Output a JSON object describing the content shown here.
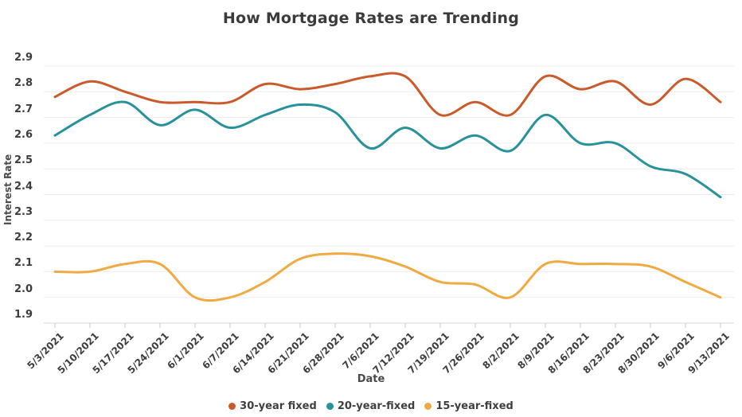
{
  "chart_data": {
    "type": "line",
    "title": "How Mortgage Rates are Trending",
    "xlabel": "Date",
    "ylabel": "Interest Rate",
    "ylim": [
      1.9,
      2.9
    ],
    "grid": true,
    "legend_position": "bottom",
    "background": "#ffffff",
    "gridline_color": "#ececec",
    "axisline_color": "#d6d6d6",
    "y_ticks": [
      "2.9",
      "2.8",
      "2.7",
      "2.6",
      "2.5",
      "2.4",
      "2.3",
      "2.2",
      "2.1",
      "2.0",
      "1.9"
    ],
    "categories": [
      "5/3/2021",
      "5/10/2021",
      "5/17/2021",
      "5/24/2021",
      "6/1/2021",
      "6/7/2021",
      "6/14/2021",
      "6/21/2021",
      "6/28/2021",
      "7/6/2021",
      "7/12/2021",
      "7/19/2021",
      "7/26/2021",
      "8/2/2021",
      "8/9/2021",
      "8/16/2021",
      "8/23/2021",
      "8/30/2021",
      "9/6/2021",
      "9/13/2021"
    ],
    "series": [
      {
        "name": "30-year fixed",
        "color": "#cb5a2a",
        "values": [
          2.78,
          2.84,
          2.8,
          2.76,
          2.76,
          2.76,
          2.83,
          2.81,
          2.83,
          2.86,
          2.86,
          2.71,
          2.76,
          2.71,
          2.86,
          2.81,
          2.84,
          2.75,
          2.85,
          2.76
        ]
      },
      {
        "name": "20-year-fixed",
        "color": "#27929a",
        "values": [
          2.63,
          2.71,
          2.76,
          2.67,
          2.73,
          2.66,
          2.71,
          2.75,
          2.72,
          2.58,
          2.66,
          2.58,
          2.63,
          2.57,
          2.71,
          2.6,
          2.6,
          2.51,
          2.48,
          2.39
        ]
      },
      {
        "name": "15-year-fixed",
        "color": "#efaa41",
        "values": [
          2.1,
          2.1,
          2.13,
          2.13,
          2.0,
          2.0,
          2.06,
          2.15,
          2.17,
          2.16,
          2.12,
          2.06,
          2.05,
          2.0,
          2.13,
          2.13,
          2.13,
          2.12,
          2.06,
          2.0
        ]
      }
    ]
  }
}
